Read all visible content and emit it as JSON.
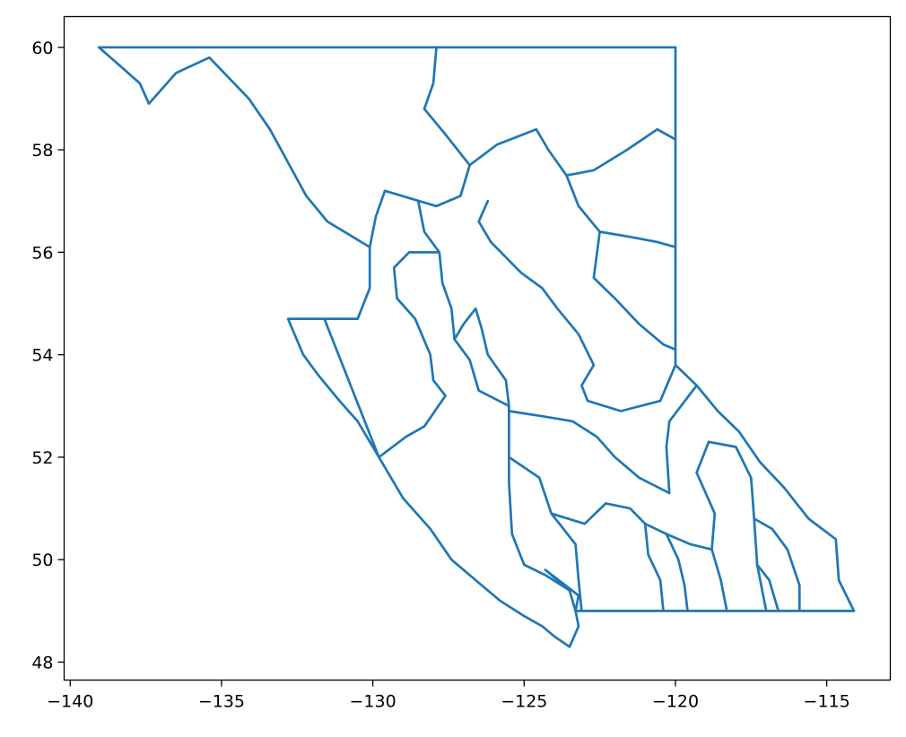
{
  "chart_data": {
    "type": "map",
    "xlim": [
      -140.2,
      -112.9
    ],
    "ylim": [
      47.65,
      60.6
    ],
    "x_ticks": [
      {
        "value": -140,
        "label": "−140"
      },
      {
        "value": -135,
        "label": "−135"
      },
      {
        "value": -130,
        "label": "−130"
      },
      {
        "value": -125,
        "label": "−125"
      },
      {
        "value": -120,
        "label": "−120"
      },
      {
        "value": -115,
        "label": "−115"
      }
    ],
    "y_ticks": [
      {
        "value": 48,
        "label": "48"
      },
      {
        "value": 50,
        "label": "50"
      },
      {
        "value": 52,
        "label": "52"
      },
      {
        "value": 54,
        "label": "54"
      },
      {
        "value": 56,
        "label": "56"
      },
      {
        "value": 58,
        "label": "58"
      },
      {
        "value": 60,
        "label": "60"
      }
    ],
    "grid": false,
    "line_color": "#1f77b4",
    "boundaries": [
      {
        "id": "outer-boundary",
        "coords": [
          [
            -139.05,
            60.0
          ],
          [
            -127.9,
            60.0
          ],
          [
            -120.0,
            60.0
          ],
          [
            -120.0,
            58.2
          ],
          [
            -120.0,
            56.1
          ],
          [
            -120.0,
            54.1
          ],
          [
            -120.0,
            53.8
          ],
          [
            -119.3,
            53.4
          ],
          [
            -118.6,
            52.9
          ],
          [
            -117.9,
            52.5
          ],
          [
            -117.2,
            51.9
          ],
          [
            -116.4,
            51.4
          ],
          [
            -115.6,
            50.8
          ],
          [
            -114.7,
            50.4
          ],
          [
            -114.6,
            49.6
          ],
          [
            -114.1,
            49.0
          ],
          [
            -116.5,
            49.0
          ],
          [
            -120.0,
            49.0
          ],
          [
            -123.3,
            49.0
          ],
          [
            -123.2,
            48.7
          ],
          [
            -123.5,
            48.3
          ],
          [
            -124.0,
            48.5
          ],
          [
            -124.4,
            48.7
          ],
          [
            -125.0,
            48.9
          ],
          [
            -125.8,
            49.2
          ],
          [
            -126.6,
            49.6
          ],
          [
            -127.4,
            50.0
          ],
          [
            -128.1,
            50.6
          ],
          [
            -128.4,
            50.8
          ],
          [
            -129.0,
            51.2
          ],
          [
            -129.8,
            52.0
          ],
          [
            -130.5,
            52.7
          ],
          [
            -131.1,
            53.1
          ],
          [
            -131.8,
            53.6
          ],
          [
            -132.3,
            54.0
          ],
          [
            -132.8,
            54.7
          ],
          [
            -131.6,
            54.7
          ],
          [
            -130.5,
            54.7
          ],
          [
            -130.1,
            55.3
          ],
          [
            -130.1,
            56.1
          ],
          [
            -131.5,
            56.6
          ],
          [
            -132.2,
            57.1
          ],
          [
            -133.4,
            58.4
          ],
          [
            -134.1,
            59.0
          ],
          [
            -135.4,
            59.8
          ],
          [
            -136.5,
            59.5
          ],
          [
            -137.4,
            58.9
          ],
          [
            -137.7,
            59.3
          ],
          [
            -139.05,
            60.0
          ]
        ]
      },
      {
        "id": "island-boundary",
        "coords": [
          [
            -123.3,
            49.0
          ],
          [
            -123.5,
            49.4
          ],
          [
            -124.3,
            49.8
          ],
          [
            -123.2,
            49.3
          ],
          [
            -123.3,
            49.0
          ]
        ]
      },
      {
        "id": "haida-gwaii-split",
        "coords": [
          [
            -131.6,
            54.7
          ],
          [
            -129.8,
            52.0
          ]
        ]
      },
      {
        "id": "north-divide",
        "coords": [
          [
            -127.9,
            60.0
          ],
          [
            -128.0,
            59.3
          ],
          [
            -128.3,
            58.8
          ],
          [
            -127.6,
            58.3
          ],
          [
            -126.8,
            57.7
          ],
          [
            -127.1,
            57.1
          ],
          [
            -127.9,
            56.9
          ],
          [
            -129.6,
            57.2
          ],
          [
            -129.9,
            56.7
          ],
          [
            -130.1,
            56.1
          ]
        ]
      },
      {
        "id": "peace-river-west",
        "coords": [
          [
            -126.2,
            57.0
          ],
          [
            -126.5,
            56.6
          ],
          [
            -126.1,
            56.2
          ],
          [
            -125.1,
            55.6
          ],
          [
            -124.4,
            55.3
          ],
          [
            -123.9,
            54.9
          ],
          [
            -123.2,
            54.4
          ],
          [
            -122.7,
            53.8
          ],
          [
            -123.1,
            53.4
          ],
          [
            -122.9,
            53.1
          ],
          [
            -121.8,
            52.9
          ],
          [
            -120.5,
            53.1
          ],
          [
            -120.0,
            53.8
          ]
        ]
      },
      {
        "id": "peace-river-north",
        "coords": [
          [
            -126.8,
            57.7
          ],
          [
            -125.9,
            58.1
          ],
          [
            -124.6,
            58.4
          ],
          [
            -124.2,
            58.0
          ],
          [
            -123.6,
            57.5
          ],
          [
            -122.7,
            57.6
          ],
          [
            -121.6,
            58.0
          ],
          [
            -120.6,
            58.4
          ],
          [
            -120.0,
            58.2
          ]
        ]
      },
      {
        "id": "fort-nelson-south",
        "coords": [
          [
            -123.6,
            57.5
          ],
          [
            -123.2,
            56.9
          ],
          [
            -122.5,
            56.4
          ],
          [
            -121.5,
            56.3
          ],
          [
            -120.6,
            56.2
          ],
          [
            -120.0,
            56.1
          ]
        ]
      },
      {
        "id": "dawson-creek",
        "coords": [
          [
            -122.5,
            56.4
          ],
          [
            -122.7,
            55.5
          ],
          [
            -122.0,
            55.1
          ],
          [
            -121.2,
            54.6
          ],
          [
            -120.4,
            54.2
          ],
          [
            -120.0,
            54.1
          ]
        ]
      },
      {
        "id": "skeena-east",
        "coords": [
          [
            -128.5,
            57.0
          ],
          [
            -128.3,
            56.4
          ],
          [
            -127.8,
            56.0
          ],
          [
            -127.7,
            55.4
          ],
          [
            -127.4,
            54.9
          ],
          [
            -127.3,
            54.3
          ],
          [
            -126.8,
            53.9
          ],
          [
            -126.5,
            53.3
          ],
          [
            -125.5,
            53.0
          ]
        ]
      },
      {
        "id": "bulkley-nechako",
        "coords": [
          [
            -127.8,
            56.0
          ],
          [
            -128.8,
            56.0
          ],
          [
            -129.3,
            55.7
          ],
          [
            -129.2,
            55.1
          ],
          [
            -128.6,
            54.7
          ],
          [
            -128.1,
            54.0
          ],
          [
            -128.0,
            53.5
          ],
          [
            -127.6,
            53.2
          ],
          [
            -128.3,
            52.6
          ],
          [
            -128.9,
            52.4
          ],
          [
            -129.8,
            52.0
          ]
        ]
      },
      {
        "id": "nechako-south",
        "coords": [
          [
            -127.3,
            54.3
          ],
          [
            -127.0,
            54.6
          ],
          [
            -126.6,
            54.9
          ],
          [
            -126.4,
            54.5
          ],
          [
            -126.2,
            54.0
          ],
          [
            -125.6,
            53.5
          ],
          [
            -125.5,
            53.0
          ]
        ]
      },
      {
        "id": "central-line",
        "coords": [
          [
            -125.5,
            53.0
          ],
          [
            -125.5,
            52.0
          ],
          [
            -125.5,
            51.5
          ],
          [
            -125.4,
            50.5
          ],
          [
            -125.0,
            49.9
          ],
          [
            -124.3,
            49.7
          ],
          [
            -123.5,
            49.4
          ]
        ]
      },
      {
        "id": "cariboo-split",
        "coords": [
          [
            -125.5,
            52.9
          ],
          [
            -124.4,
            52.8
          ],
          [
            -123.4,
            52.7
          ],
          [
            -122.6,
            52.4
          ],
          [
            -122.0,
            52.0
          ],
          [
            -121.2,
            51.6
          ],
          [
            -120.2,
            51.3
          ]
        ]
      },
      {
        "id": "thompson-west",
        "coords": [
          [
            -125.5,
            52.0
          ],
          [
            -124.5,
            51.6
          ],
          [
            -124.1,
            50.9
          ],
          [
            -123.3,
            50.3
          ],
          [
            -123.2,
            49.6
          ],
          [
            -123.1,
            49.0
          ]
        ]
      },
      {
        "id": "thompson-central",
        "coords": [
          [
            -124.1,
            50.9
          ],
          [
            -123.0,
            50.7
          ],
          [
            -122.3,
            51.1
          ],
          [
            -121.5,
            51.0
          ],
          [
            -121.0,
            50.7
          ],
          [
            -120.3,
            50.5
          ],
          [
            -119.5,
            50.3
          ],
          [
            -118.8,
            50.2
          ]
        ]
      },
      {
        "id": "okanagan-west",
        "coords": [
          [
            -121.0,
            50.7
          ],
          [
            -120.9,
            50.1
          ],
          [
            -120.5,
            49.6
          ],
          [
            -120.4,
            49.0
          ]
        ]
      },
      {
        "id": "okanagan-east",
        "coords": [
          [
            -120.3,
            50.5
          ],
          [
            -119.9,
            50.0
          ],
          [
            -119.7,
            49.5
          ],
          [
            -119.6,
            49.0
          ]
        ]
      },
      {
        "id": "kootenay-west",
        "coords": [
          [
            -118.8,
            50.2
          ],
          [
            -118.5,
            49.6
          ],
          [
            -118.3,
            49.0
          ]
        ]
      },
      {
        "id": "kootenay-central",
        "coords": [
          [
            -118.8,
            50.2
          ],
          [
            -118.7,
            50.9
          ],
          [
            -119.3,
            51.7
          ],
          [
            -118.9,
            52.3
          ],
          [
            -118.0,
            52.2
          ],
          [
            -117.5,
            51.6
          ],
          [
            -117.4,
            50.8
          ],
          [
            -117.3,
            49.9
          ],
          [
            -117.0,
            49.0
          ]
        ]
      },
      {
        "id": "east-kootenay",
        "coords": [
          [
            -117.3,
            49.9
          ],
          [
            -116.9,
            49.6
          ],
          [
            -116.6,
            49.0
          ]
        ]
      },
      {
        "id": "rockies-split",
        "coords": [
          [
            -117.4,
            50.8
          ],
          [
            -116.8,
            50.6
          ],
          [
            -116.3,
            50.2
          ],
          [
            -115.9,
            49.5
          ],
          [
            -115.9,
            49.0
          ]
        ]
      },
      {
        "id": "north-thompson",
        "coords": [
          [
            -120.2,
            51.3
          ],
          [
            -120.3,
            52.2
          ],
          [
            -120.2,
            52.7
          ],
          [
            -119.3,
            53.4
          ]
        ]
      }
    ]
  }
}
